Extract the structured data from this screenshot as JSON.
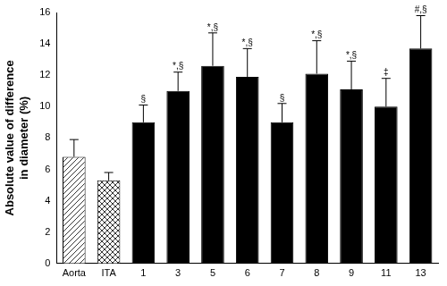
{
  "chart_data": {
    "type": "bar",
    "y_label": [
      "Absolute value of difference",
      "in diameter (%)"
    ],
    "categories": [
      "Aorta",
      "ITA",
      "1",
      "3",
      "5",
      "6",
      "7",
      "8",
      "9",
      "11",
      "13"
    ],
    "values": [
      6.8,
      5.3,
      9.0,
      11.0,
      12.6,
      11.9,
      9.0,
      12.1,
      11.1,
      10.0,
      13.7
    ],
    "errors": [
      1.1,
      0.5,
      1.1,
      1.2,
      2.1,
      1.8,
      1.2,
      2.1,
      1.8,
      1.8,
      2.1
    ],
    "annotations": [
      null,
      null,
      "§",
      "*,§",
      "*,§",
      "*,§",
      "§",
      "*,§",
      "*,§",
      "‡",
      "#,§"
    ],
    "colors": [
      "#ffffff",
      "#ffffff",
      "#000000",
      "#000000",
      "#000000",
      "#000000",
      "#000000",
      "#000000",
      "#000000",
      "#000000",
      "#000000"
    ],
    "ylim": [
      0,
      16
    ],
    "yticks": [
      0,
      2,
      4,
      6,
      8,
      10,
      12,
      14,
      16
    ],
    "grid": false
  }
}
